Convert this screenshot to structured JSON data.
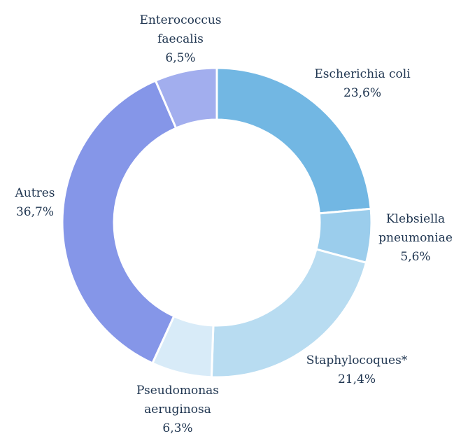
{
  "chart_data": {
    "type": "pie",
    "donut": true,
    "title": "",
    "legend": "none",
    "slices": [
      {
        "name": "Escherichia coli",
        "lines": [
          "Escherichia coli"
        ],
        "value": 23.6,
        "value_label": "23,6%",
        "color": "#72b7e3"
      },
      {
        "name": "Klebsiella pneumoniae",
        "lines": [
          "Klebsiella",
          "pneumoniae"
        ],
        "value": 5.6,
        "value_label": "5,6%",
        "color": "#9bcdec"
      },
      {
        "name": "Staphylocoques*",
        "lines": [
          "Staphylocoques*"
        ],
        "value": 21.4,
        "value_label": "21,4%",
        "color": "#b8dcf1"
      },
      {
        "name": "Pseudomonas aeruginosa",
        "lines": [
          "Pseudomonas",
          "aeruginosa"
        ],
        "value": 6.3,
        "value_label": "6,3%",
        "color": "#d8ebf8"
      },
      {
        "name": "Autres",
        "lines": [
          "Autres"
        ],
        "value": 36.7,
        "value_label": "36,7%",
        "color": "#8596e8"
      },
      {
        "name": "Enterococcus faecalis",
        "lines": [
          "Enterococcus",
          "faecalis"
        ],
        "value": 6.5,
        "value_label": "6,5%",
        "color": "#a2aeee"
      }
    ]
  }
}
